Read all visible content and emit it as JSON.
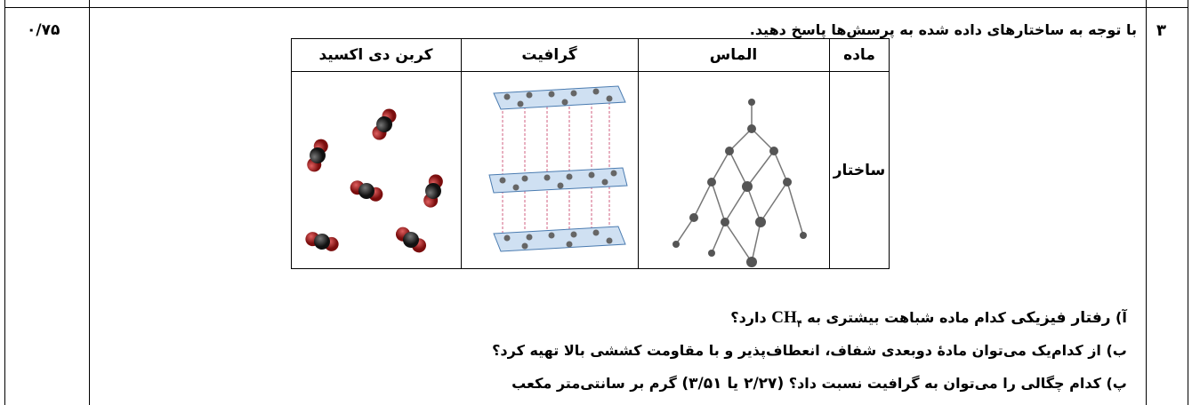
{
  "question": {
    "number": "۳",
    "score": "۰/۷۵",
    "prompt": "با توجه به ساختارهای داده شده به پرسش‌ها پاسخ دهید.",
    "table": {
      "header": [
        "ماده",
        "الماس",
        "گرافیت",
        "کربن دی اکسید"
      ],
      "row_label": "ساختار"
    },
    "items": [
      {
        "parts": [
          "آ) ",
          "رفتار فیزیکی",
          " کدام ماده شباهت بیشتری به ",
          "CH",
          "۴",
          " دارد؟"
        ]
      },
      {
        "parts": [
          "ب) از کدام‌یک می‌توان مادهٔ دوبعدی شفاف، انعطاف‌پذیر و با مقاومت کششی بالا تهیه کرد؟"
        ]
      },
      {
        "parts": [
          "پ) کدام چگالی را می‌توان به گرافیت نسبت داد؟ ",
          "(۲/۲۷ یا ۳/۵۱)",
          " گرم بر سانتی‌متر مکعب"
        ]
      }
    ]
  }
}
